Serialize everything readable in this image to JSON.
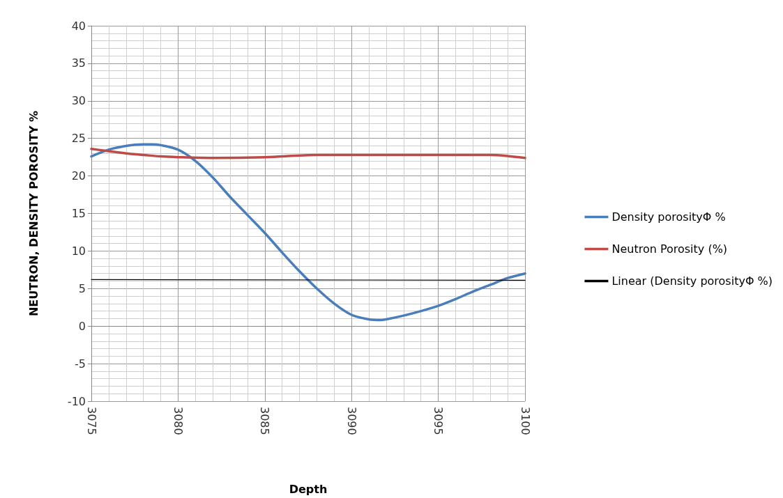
{
  "chart_data": {
    "type": "line",
    "xlabel": "Depth",
    "ylabel": "NEUTRON, DENSITY POROSITY %",
    "xlim": [
      3075,
      3100
    ],
    "xticks": [
      3075,
      3080,
      3085,
      3090,
      3095,
      3100
    ],
    "ylim": [
      -10,
      40
    ],
    "yticks": [
      -10,
      -5,
      0,
      5,
      10,
      15,
      20,
      25,
      30,
      35,
      40
    ],
    "grid": true,
    "legend": "right",
    "marker": "none",
    "line_style": "solid",
    "series": [
      {
        "name": "Density porosityΦ %",
        "color": "#4a7ebb",
        "x": [
          3075,
          3076,
          3077,
          3078,
          3078.5,
          3079,
          3080,
          3081,
          3082,
          3083,
          3084,
          3085,
          3086,
          3087,
          3088,
          3089,
          3090,
          3091,
          3091.7,
          3092,
          3093,
          3094,
          3095,
          3096,
          3097,
          3098,
          3099,
          3100
        ],
        "values": [
          22.6,
          23.5,
          24.0,
          24.2,
          24.2,
          24.1,
          23.5,
          22.0,
          19.8,
          17.2,
          14.8,
          12.4,
          9.8,
          7.3,
          5.0,
          3.0,
          1.5,
          0.9,
          0.8,
          0.9,
          1.4,
          2.0,
          2.7,
          3.6,
          4.6,
          5.5,
          6.4,
          7.0
        ]
      },
      {
        "name": "Neutron Porosity (%)",
        "color": "#be4b48",
        "x": [
          3075,
          3076,
          3077,
          3078,
          3079,
          3080,
          3082,
          3085,
          3088,
          3090,
          3095,
          3098,
          3100
        ],
        "values": [
          23.6,
          23.3,
          23.0,
          22.8,
          22.6,
          22.5,
          22.4,
          22.5,
          22.8,
          22.8,
          22.8,
          22.8,
          22.4
        ]
      },
      {
        "name": "Linear (Density porosityΦ %)",
        "color": "#000000",
        "x": [
          3075,
          3100
        ],
        "values": [
          6.2,
          6.1
        ]
      }
    ]
  }
}
